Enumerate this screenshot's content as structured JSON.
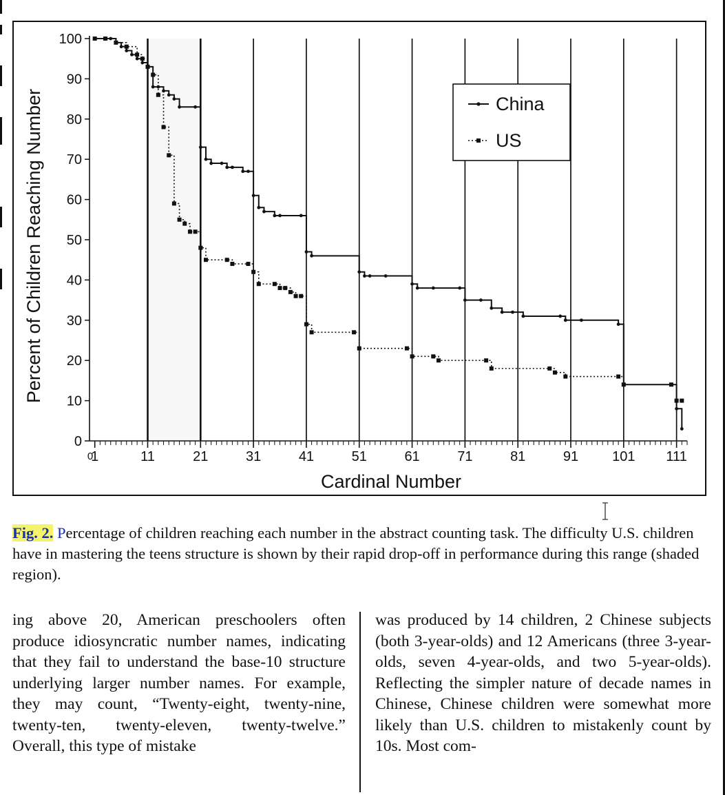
{
  "chart_data": {
    "type": "line",
    "step": true,
    "xlabel": "Cardinal Number",
    "ylabel": "Percent of Children Reaching Number",
    "xlim": [
      0,
      113
    ],
    "ylim": [
      0,
      100
    ],
    "x_ticks": [
      1,
      11,
      21,
      31,
      41,
      51,
      61,
      71,
      81,
      91,
      101,
      111
    ],
    "x_tick_labels": [
      "1",
      "11",
      "21",
      "31",
      "41",
      "51",
      "61",
      "71",
      "81",
      "91",
      "101",
      "111"
    ],
    "x_origin_label": "0",
    "y_ticks": [
      0,
      10,
      20,
      30,
      40,
      50,
      60,
      70,
      80,
      90,
      100
    ],
    "decade_lines": [
      11,
      21,
      31,
      41,
      51,
      61,
      71,
      81,
      91,
      101,
      111
    ],
    "shaded_region": [
      11,
      21
    ],
    "legend_position": "top-right",
    "series": [
      {
        "name": "China",
        "style": "solid",
        "color": "#111111",
        "x": [
          1,
          4,
          5,
          6,
          7,
          8,
          9,
          10,
          11,
          12,
          13,
          14,
          15,
          16,
          17,
          20,
          21,
          22,
          23,
          25,
          26,
          27,
          29,
          30,
          31,
          32,
          33,
          35,
          36,
          40,
          41,
          42,
          51,
          52,
          53,
          56,
          61,
          62,
          65,
          70,
          71,
          74,
          76,
          78,
          80,
          82,
          89,
          90,
          93,
          100,
          101,
          110,
          111,
          112
        ],
        "y": [
          100,
          100,
          99,
          98,
          97,
          96,
          95,
          94,
          93,
          88,
          88,
          87,
          86,
          85,
          83,
          83,
          73,
          70,
          69,
          69,
          68,
          68,
          67,
          67,
          61,
          58,
          57,
          56,
          56,
          56,
          47,
          46,
          42,
          41,
          41,
          41,
          39,
          38,
          38,
          38,
          35,
          35,
          33,
          32,
          32,
          31,
          31,
          30,
          30,
          29,
          14,
          14,
          8,
          3
        ]
      },
      {
        "name": "US",
        "style": "dotted",
        "color": "#111111",
        "x": [
          1,
          3,
          5,
          7,
          9,
          10,
          11,
          12,
          13,
          14,
          15,
          16,
          17,
          18,
          19,
          20,
          21,
          22,
          26,
          27,
          30,
          31,
          32,
          35,
          36,
          37,
          38,
          39,
          40,
          41,
          42,
          50,
          51,
          60,
          61,
          65,
          66,
          75,
          76,
          87,
          88,
          90,
          100,
          101,
          110,
          111,
          112
        ],
        "y": [
          100,
          100,
          99,
          98,
          96,
          95,
          93,
          91,
          86,
          78,
          71,
          59,
          55,
          54,
          52,
          52,
          48,
          45,
          45,
          44,
          44,
          42,
          39,
          39,
          38,
          38,
          37,
          36,
          36,
          29,
          27,
          27,
          23,
          23,
          21,
          21,
          20,
          20,
          18,
          18,
          17,
          16,
          16,
          14,
          14,
          10,
          10
        ]
      }
    ]
  },
  "caption": {
    "label": "Fig. 2.",
    "first_letter": "P",
    "text": "ercentage of children reaching each number in the abstract counting task. The difficulty U.S. children have in mastering the teens structure is shown by their rapid drop-off in performance during this range (shaded region)."
  },
  "body_text": {
    "left_column": "ing above 20, American preschoolers often produce idiosyncratic number names, indicating that they fail to understand the base-10 structure underlying larger number names. For example, they may count, “Twenty-eight, twenty-nine, twenty-ten, twenty-eleven, twenty-twelve.” Overall, this type of mistake",
    "right_column": "was produced by 14 children, 2 Chinese subjects (both 3-year-olds) and 12 Americans (three 3-year-olds, seven 4-year-olds, and two 5-year-olds). Reflecting the simpler nature of decade names in Chinese, Chinese children were somewhat more likely than U.S. children to mistakenly count by 10s. Most com-"
  },
  "colors": {
    "highlight": "#f4f36a",
    "caption_link": "#1a2fa8",
    "ink": "#111111"
  },
  "icons": {
    "cursor": "text-cursor-icon"
  }
}
